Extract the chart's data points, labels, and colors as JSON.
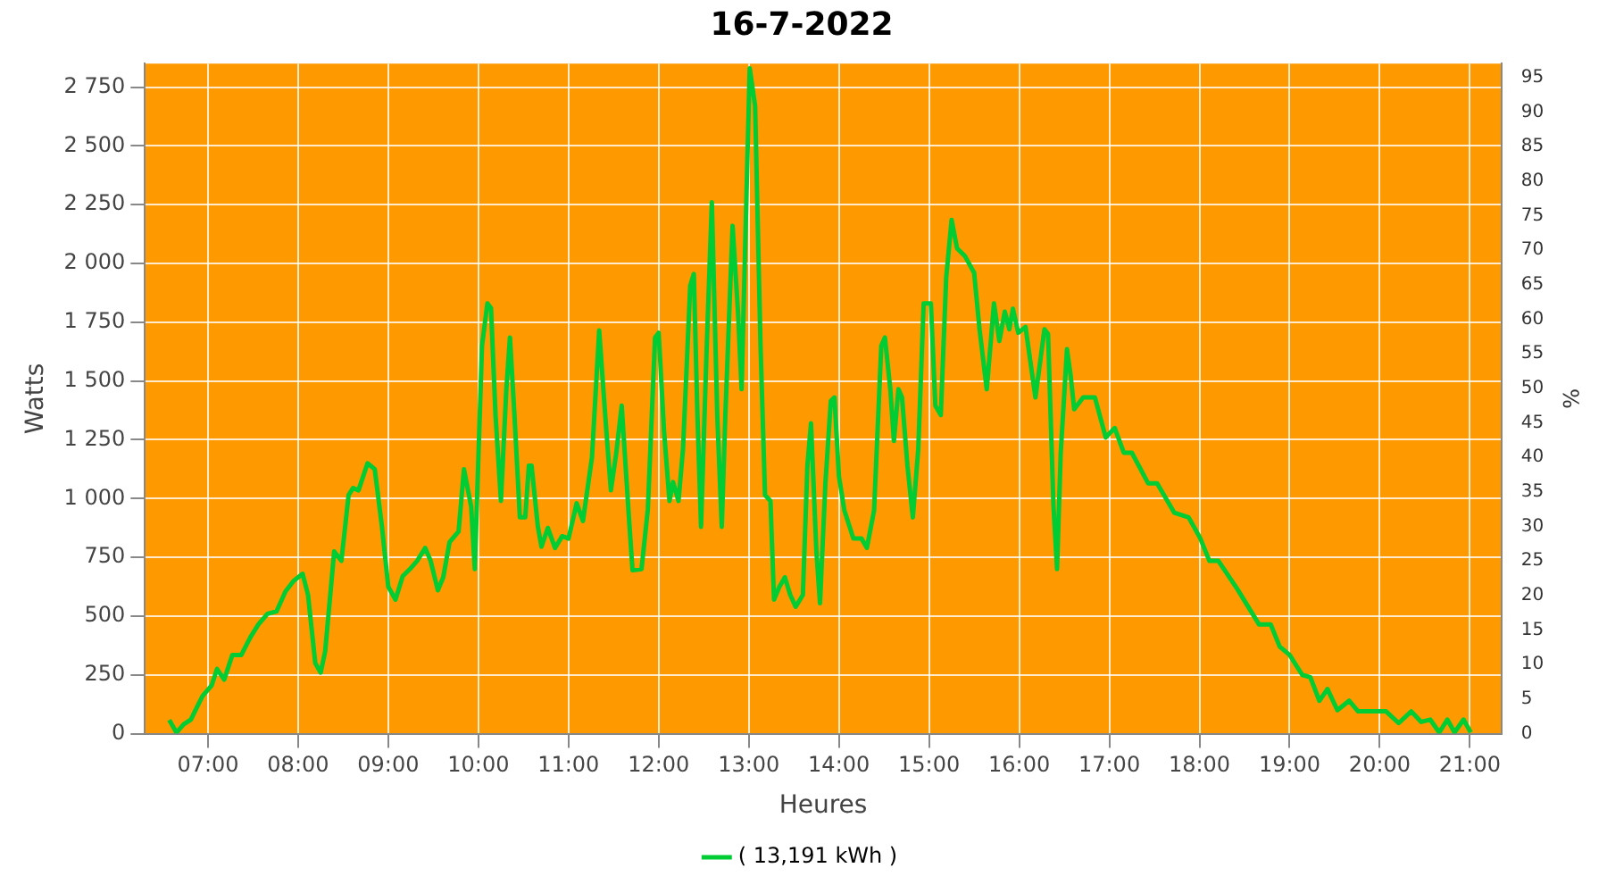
{
  "chart_data": {
    "type": "line",
    "title": "16-7-2022",
    "xlabel": "Heures",
    "ylabel": "Watts",
    "y2label": "%",
    "xlim": [
      6.3,
      21.35
    ],
    "xticks": [
      {
        "value": 7,
        "label": "07:00"
      },
      {
        "value": 8,
        "label": "08:00"
      },
      {
        "value": 9,
        "label": "09:00"
      },
      {
        "value": 10,
        "label": "10:00"
      },
      {
        "value": 11,
        "label": "11:00"
      },
      {
        "value": 12,
        "label": "12:00"
      },
      {
        "value": 13,
        "label": "13:00"
      },
      {
        "value": 14,
        "label": "14:00"
      },
      {
        "value": 15,
        "label": "15:00"
      },
      {
        "value": 16,
        "label": "16:00"
      },
      {
        "value": 17,
        "label": "17:00"
      },
      {
        "value": 18,
        "label": "18:00"
      },
      {
        "value": 19,
        "label": "19:00"
      },
      {
        "value": 20,
        "label": "20:00"
      },
      {
        "value": 21,
        "label": "21:00"
      }
    ],
    "ylim": [
      0,
      2850
    ],
    "yticks": [
      0,
      250,
      500,
      750,
      {
        "value": 1000,
        "label": "1 000"
      },
      {
        "value": 1250,
        "label": "1 250"
      },
      {
        "value": 1500,
        "label": "1 500"
      },
      {
        "value": 1750,
        "label": "1 750"
      },
      {
        "value": 2000,
        "label": "2 000"
      },
      {
        "value": 2250,
        "label": "2 250"
      },
      {
        "value": 2500,
        "label": "2 500"
      },
      {
        "value": 2750,
        "label": "2 750"
      }
    ],
    "y2lim": [
      0,
      97
    ],
    "y2ticks": [
      0,
      5,
      10,
      15,
      20,
      25,
      30,
      35,
      40,
      45,
      50,
      55,
      60,
      65,
      70,
      75,
      80,
      85,
      90,
      95
    ],
    "grid": true,
    "legend": "bottom",
    "marker": "none",
    "line_style": "solid",
    "series": [
      {
        "name": "( 13,191 kWh )",
        "color": "#00cc33",
        "x": [
          6.57,
          6.65,
          6.73,
          6.81,
          6.88,
          6.94,
          7.04,
          7.1,
          7.18,
          7.27,
          7.37,
          7.47,
          7.56,
          7.66,
          7.76,
          7.86,
          7.95,
          8.05,
          8.11,
          8.19,
          8.25,
          8.3,
          8.4,
          8.48,
          8.56,
          8.61,
          8.67,
          8.77,
          8.85,
          8.93,
          9.0,
          9.08,
          9.16,
          9.24,
          9.32,
          9.41,
          9.47,
          9.55,
          9.61,
          9.68,
          9.78,
          9.84,
          9.92,
          9.96,
          10.04,
          10.1,
          10.14,
          10.19,
          10.25,
          10.31,
          10.35,
          10.4,
          10.46,
          10.52,
          10.56,
          10.59,
          10.66,
          10.7,
          10.77,
          10.85,
          10.93,
          11.0,
          11.09,
          11.16,
          11.26,
          11.34,
          11.42,
          11.47,
          11.53,
          11.59,
          11.67,
          11.71,
          11.81,
          11.88,
          11.96,
          12.0,
          12.06,
          12.12,
          12.16,
          12.22,
          12.27,
          12.35,
          12.39,
          12.43,
          12.47,
          12.53,
          12.59,
          12.65,
          12.7,
          12.74,
          12.82,
          12.88,
          12.92,
          12.98,
          13.01,
          13.07,
          13.13,
          13.18,
          13.24,
          13.28,
          13.34,
          13.4,
          13.46,
          13.52,
          13.6,
          13.65,
          13.69,
          13.75,
          13.79,
          13.85,
          13.91,
          13.95,
          14.0,
          14.06,
          14.16,
          14.25,
          14.31,
          14.39,
          14.47,
          14.51,
          14.57,
          14.61,
          14.66,
          14.7,
          14.76,
          14.82,
          14.88,
          14.94,
          15.02,
          15.07,
          15.13,
          15.19,
          15.25,
          15.31,
          15.4,
          15.5,
          15.56,
          15.64,
          15.72,
          15.78,
          15.84,
          15.89,
          15.93,
          15.99,
          16.07,
          16.18,
          16.28,
          16.32,
          16.38,
          16.42,
          16.46,
          16.53,
          16.57,
          16.61,
          16.71,
          16.84,
          16.96,
          17.06,
          17.16,
          17.25,
          17.43,
          17.53,
          17.72,
          17.88,
          18.01,
          18.11,
          18.21,
          18.42,
          18.66,
          18.79,
          18.89,
          19.0,
          19.14,
          19.23,
          19.33,
          19.42,
          19.53,
          19.66,
          19.76,
          20.07,
          20.21,
          20.35,
          20.46,
          20.56,
          20.66,
          20.75,
          20.83,
          20.93,
          21.01
        ],
        "values": [
          58,
          5,
          40,
          60,
          115,
          160,
          205,
          275,
          230,
          335,
          335,
          410,
          465,
          510,
          520,
          605,
          650,
          680,
          590,
          300,
          260,
          350,
          775,
          735,
          1015,
          1045,
          1035,
          1150,
          1125,
          880,
          625,
          570,
          670,
          700,
          735,
          790,
          735,
          610,
          665,
          815,
          860,
          1125,
          965,
          700,
          1650,
          1830,
          1810,
          1355,
          990,
          1465,
          1685,
          1355,
          920,
          920,
          1140,
          1140,
          880,
          795,
          875,
          790,
          840,
          830,
          980,
          905,
          1175,
          1715,
          1285,
          1035,
          1195,
          1395,
          920,
          695,
          700,
          955,
          1685,
          1705,
          1285,
          990,
          1070,
          990,
          1210,
          1905,
          1955,
          1355,
          880,
          1610,
          2260,
          1355,
          880,
          1355,
          2160,
          1795,
          1465,
          2380,
          2830,
          2670,
          1650,
          1015,
          990,
          570,
          625,
          665,
          590,
          540,
          590,
          1140,
          1320,
          775,
          555,
          1065,
          1415,
          1430,
          1095,
          950,
          830,
          830,
          790,
          950,
          1650,
          1685,
          1465,
          1245,
          1465,
          1430,
          1140,
          920,
          1210,
          1830,
          1830,
          1395,
          1355,
          1940,
          2185,
          2065,
          2030,
          1960,
          1720,
          1465,
          1830,
          1670,
          1795,
          1720,
          1807,
          1705,
          1730,
          1430,
          1720,
          1700,
          970,
          700,
          1190,
          1635,
          1525,
          1380,
          1430,
          1430,
          1260,
          1300,
          1195,
          1195,
          1065,
          1065,
          940,
          920,
          830,
          735,
          735,
          615,
          465,
          465,
          370,
          335,
          250,
          240,
          140,
          190,
          100,
          140,
          95,
          95,
          45,
          95,
          50,
          60,
          5,
          60,
          5,
          60,
          5
        ]
      }
    ]
  }
}
